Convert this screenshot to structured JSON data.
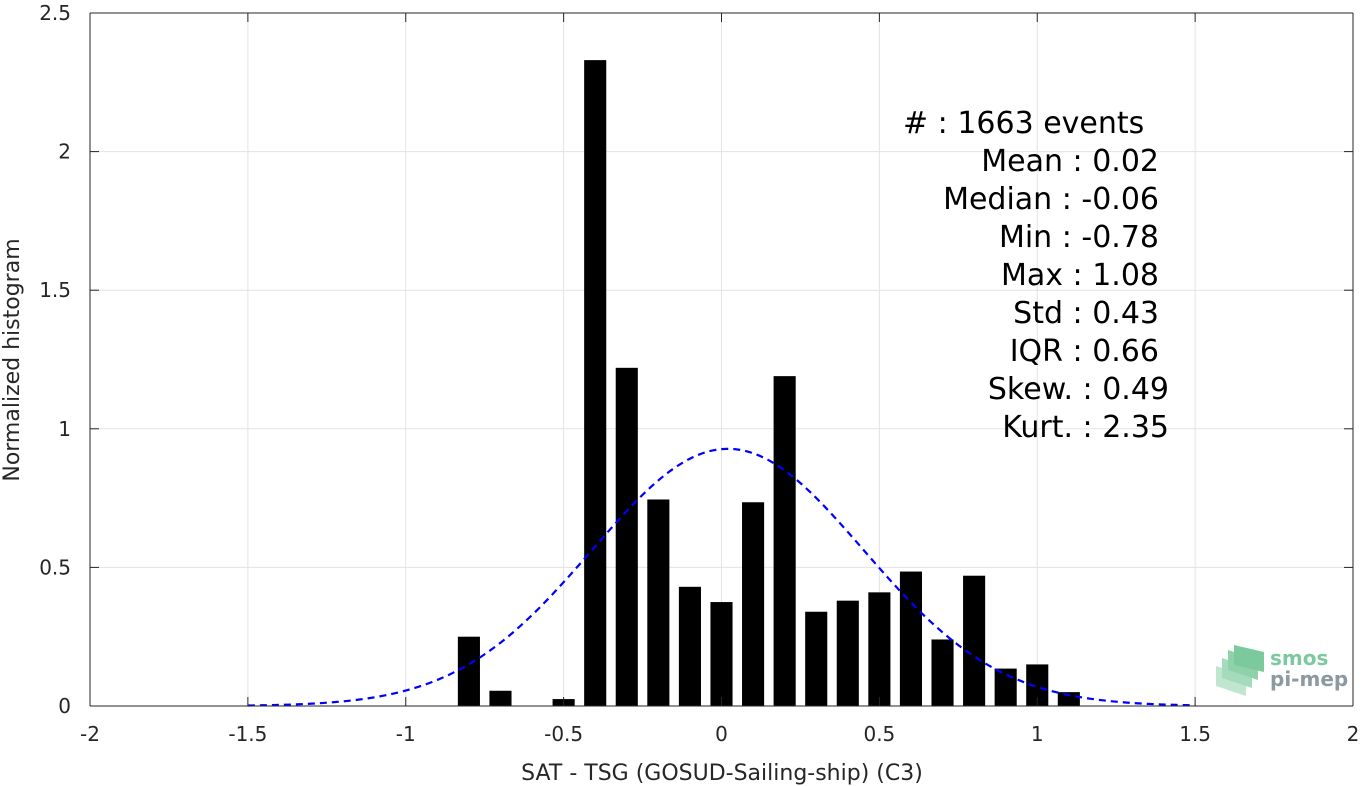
{
  "chart_data": {
    "type": "bar",
    "xlabel": "SAT - TSG (GOSUD-Sailing-ship) (C3)",
    "ylabel": "Normalized histogram",
    "xlim": [
      -2,
      2
    ],
    "ylim": [
      0,
      2.5
    ],
    "grid": true,
    "xticks": [
      -2,
      -1.5,
      -1,
      -0.5,
      0,
      0.5,
      1,
      1.5,
      2
    ],
    "xtick_labels": [
      "-2",
      "-1.5",
      "-1",
      "-0.5",
      "0",
      "0.5",
      "1",
      "1.5",
      "2"
    ],
    "yticks": [
      0,
      0.5,
      1,
      1.5,
      2,
      2.5
    ],
    "ytick_labels": [
      "0",
      "0.5",
      "1",
      "1.5",
      "2",
      "2.5"
    ],
    "bar_width": 0.07,
    "bars": [
      {
        "x": -0.8,
        "y": 0.25
      },
      {
        "x": -0.7,
        "y": 0.055
      },
      {
        "x": -0.5,
        "y": 0.025
      },
      {
        "x": -0.4,
        "y": 2.33
      },
      {
        "x": -0.3,
        "y": 1.22
      },
      {
        "x": -0.2,
        "y": 0.745
      },
      {
        "x": -0.1,
        "y": 0.43
      },
      {
        "x": 0.0,
        "y": 0.375
      },
      {
        "x": 0.1,
        "y": 0.735
      },
      {
        "x": 0.2,
        "y": 1.19
      },
      {
        "x": 0.3,
        "y": 0.34
      },
      {
        "x": 0.4,
        "y": 0.38
      },
      {
        "x": 0.5,
        "y": 0.41
      },
      {
        "x": 0.6,
        "y": 0.485
      },
      {
        "x": 0.7,
        "y": 0.24
      },
      {
        "x": 0.8,
        "y": 0.47
      },
      {
        "x": 0.9,
        "y": 0.135
      },
      {
        "x": 1.0,
        "y": 0.15
      },
      {
        "x": 1.1,
        "y": 0.05
      }
    ],
    "fit_curve": {
      "type": "gaussian",
      "mean": 0.02,
      "std": 0.43,
      "x_range": [
        -1.5,
        1.5
      ],
      "style": "dashed",
      "color": "#0000ff"
    },
    "bar_color": "#000000"
  },
  "stats": {
    "lines": [
      "#  : 1663 events",
      "Mean : 0.02",
      "Median : -0.06",
      "Min : -0.78",
      "Max : 1.08",
      "Std : 0.43",
      "IQR : 0.66",
      "Skew. : 0.49",
      "Kurt. : 2.35"
    ]
  },
  "logo": {
    "line1": "smos",
    "line2": "pi-mep"
  }
}
